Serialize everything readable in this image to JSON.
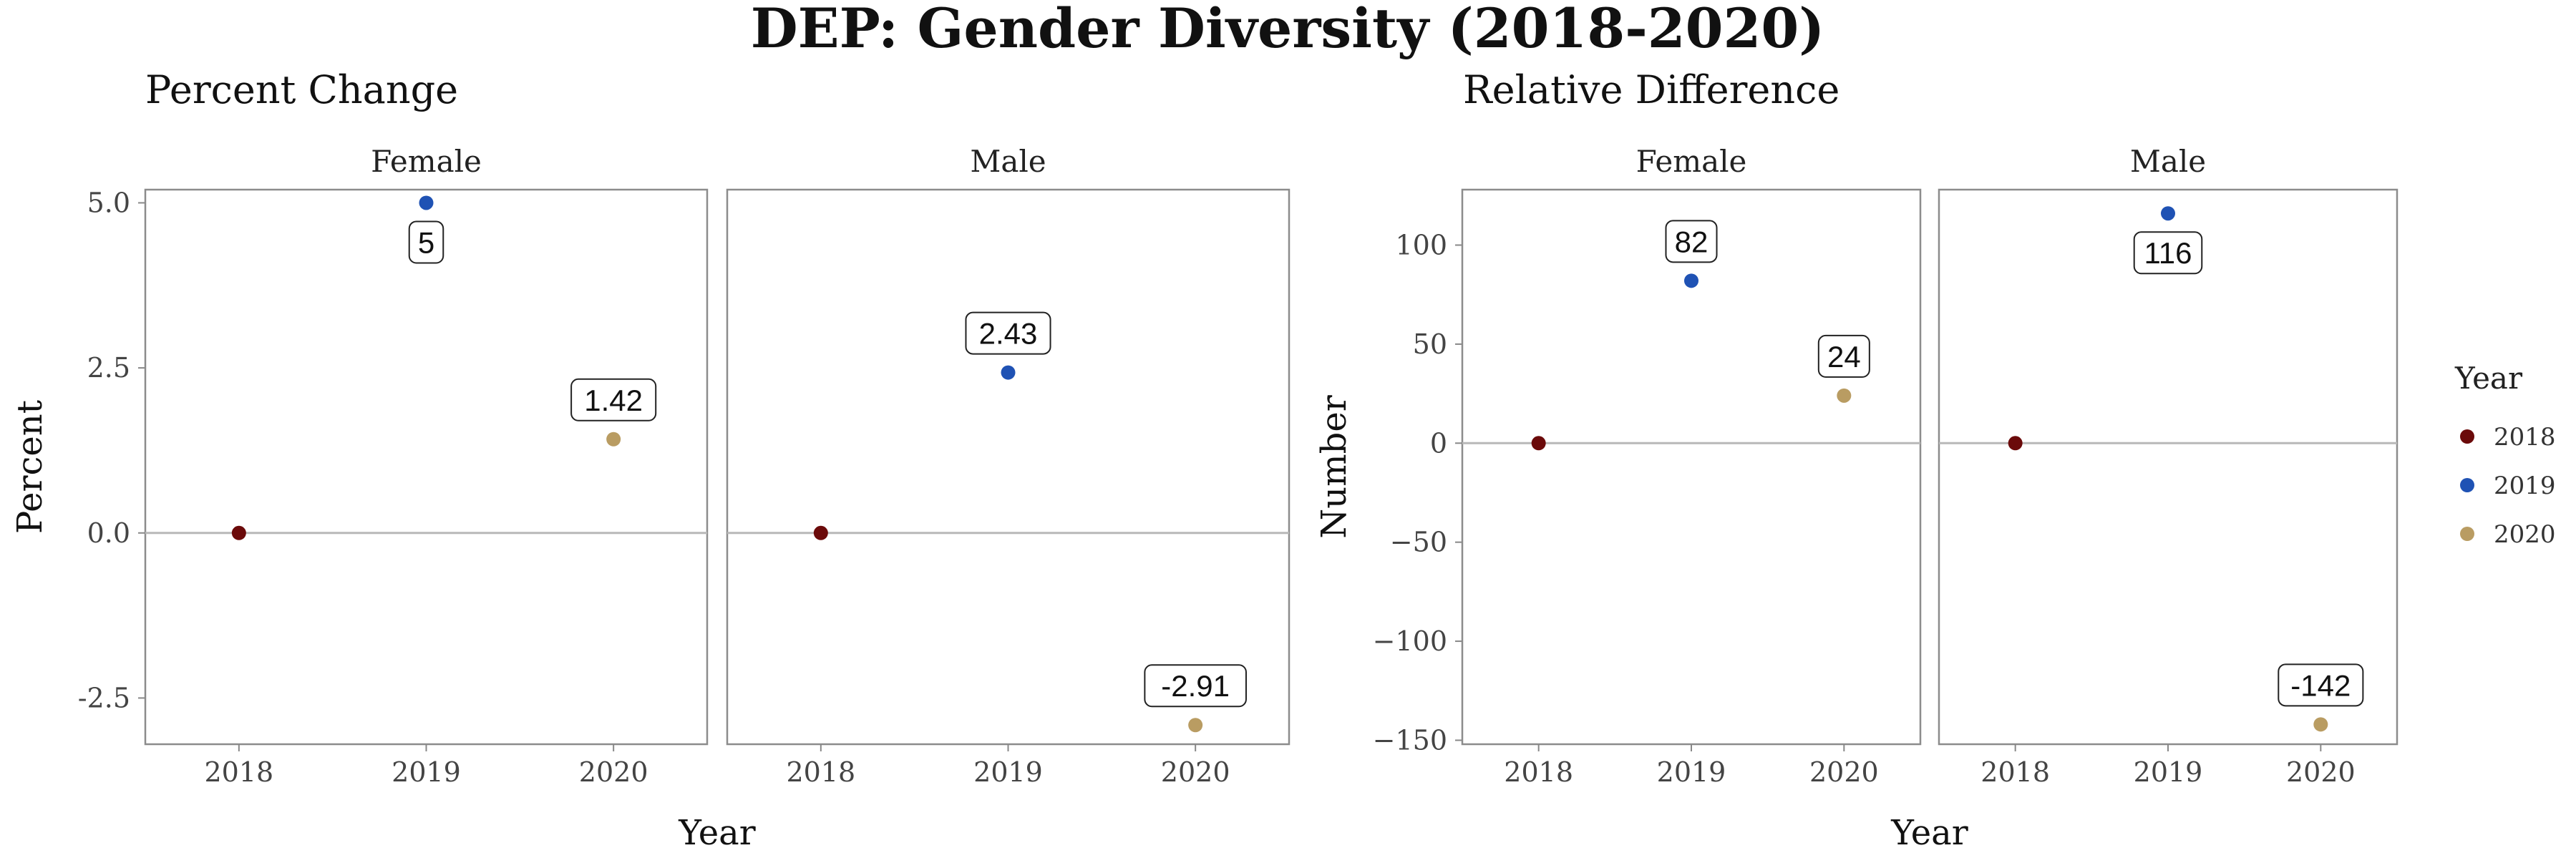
{
  "title": "DEP: Gender Diversity (2018-2020)",
  "legend": {
    "title": "Year",
    "items": [
      {
        "label": "2018",
        "color": "#6b0a0a"
      },
      {
        "label": "2019",
        "color": "#1f52b4"
      },
      {
        "label": "2020",
        "color": "#b99c62"
      }
    ]
  },
  "chart_data": [
    {
      "type": "scatter",
      "title": "Percent Change",
      "xlabel": "Year",
      "ylabel": "Percent",
      "categories": [
        "2018",
        "2019",
        "2020"
      ],
      "ylim": [
        -3.2,
        5.2
      ],
      "yticks": [
        -2.5,
        0,
        2.5,
        5
      ],
      "ytick_labels": [
        "-2.5",
        "0.0",
        "2.5",
        "5.0"
      ],
      "hline": 0,
      "grid": false,
      "facets": [
        {
          "label": "Female",
          "values": [
            0,
            5,
            1.42
          ],
          "data_labels": [
            null,
            "5",
            "1.42"
          ]
        },
        {
          "label": "Male",
          "values": [
            0,
            2.43,
            -2.91
          ],
          "data_labels": [
            null,
            "2.43",
            "-2.91"
          ]
        }
      ]
    },
    {
      "type": "scatter",
      "title": "Relative Difference",
      "xlabel": "Year",
      "ylabel": "Number",
      "categories": [
        "2018",
        "2019",
        "2020"
      ],
      "ylim": [
        -152,
        128
      ],
      "yticks": [
        -150,
        -100,
        -50,
        0,
        50,
        100
      ],
      "ytick_labels": [
        "−150",
        "−100",
        "−50",
        "0",
        "50",
        "100"
      ],
      "hline": 0,
      "grid": false,
      "facets": [
        {
          "label": "Female",
          "values": [
            0,
            82,
            24
          ],
          "data_labels": [
            null,
            "82",
            "24"
          ]
        },
        {
          "label": "Male",
          "values": [
            0,
            116,
            -142
          ],
          "data_labels": [
            null,
            "116",
            "-142"
          ]
        }
      ]
    }
  ]
}
